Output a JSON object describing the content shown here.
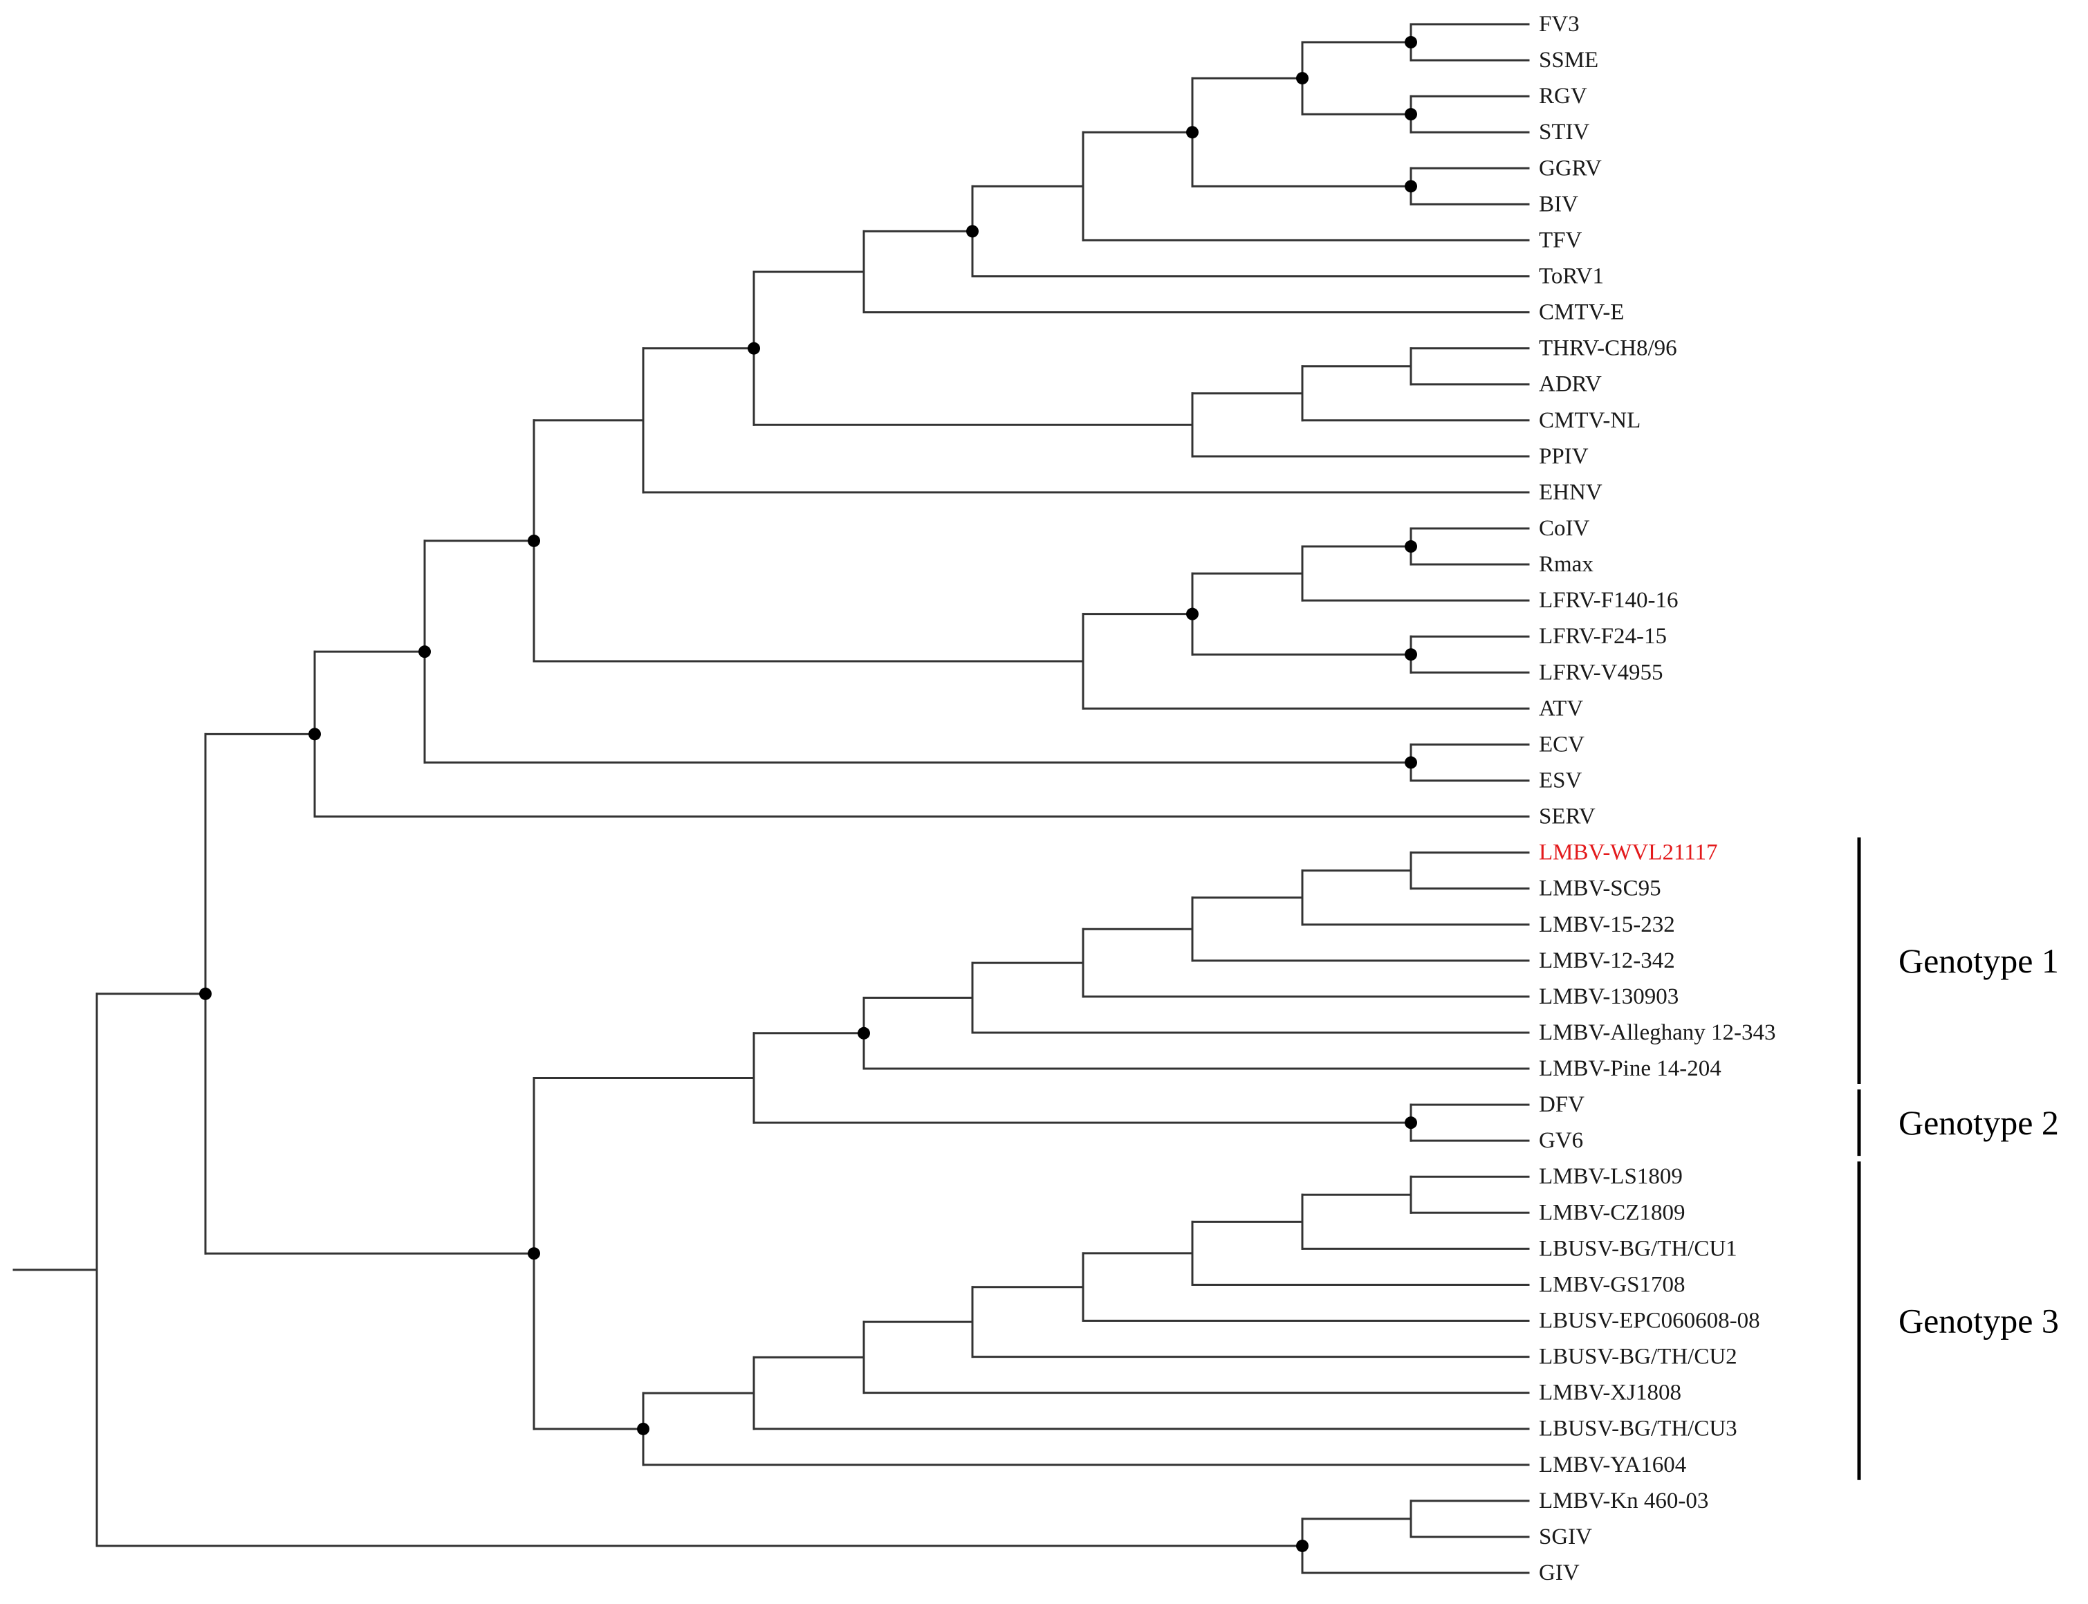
{
  "figure": {
    "type": "phylogenetic-tree",
    "highlight_color": "#e31a1c",
    "line_color": "#333333",
    "node_marker_color": "#000000"
  },
  "leaves": [
    {
      "id": "FV3",
      "label": "FV3"
    },
    {
      "id": "SSME",
      "label": "SSME"
    },
    {
      "id": "RGV",
      "label": "RGV"
    },
    {
      "id": "STIV",
      "label": "STIV"
    },
    {
      "id": "GGRV",
      "label": "GGRV"
    },
    {
      "id": "BIV",
      "label": "BIV"
    },
    {
      "id": "TFV",
      "label": "TFV"
    },
    {
      "id": "ToRV1",
      "label": "ToRV1"
    },
    {
      "id": "CMTV-E",
      "label": "CMTV-E"
    },
    {
      "id": "THRV-CH8/96",
      "label": "THRV-CH8/96"
    },
    {
      "id": "ADRV",
      "label": "ADRV"
    },
    {
      "id": "CMTV-NL",
      "label": "CMTV-NL"
    },
    {
      "id": "PPIV",
      "label": "PPIV"
    },
    {
      "id": "EHNV",
      "label": "EHNV"
    },
    {
      "id": "CoIV",
      "label": "CoIV"
    },
    {
      "id": "Rmax",
      "label": "Rmax"
    },
    {
      "id": "LFRV-F140-16",
      "label": "LFRV-F140-16"
    },
    {
      "id": "LFRV-F24-15",
      "label": "LFRV-F24-15"
    },
    {
      "id": "LFRV-V4955",
      "label": "LFRV-V4955"
    },
    {
      "id": "ATV",
      "label": "ATV"
    },
    {
      "id": "ECV",
      "label": "ECV"
    },
    {
      "id": "ESV",
      "label": "ESV"
    },
    {
      "id": "SERV",
      "label": "SERV"
    },
    {
      "id": "LMBV-WVL21117",
      "label": "LMBV-WVL21117",
      "highlight": true
    },
    {
      "id": "LMBV-SC95",
      "label": "LMBV-SC95"
    },
    {
      "id": "LMBV-15-232",
      "label": "LMBV-15-232"
    },
    {
      "id": "LMBV-12-342",
      "label": "LMBV-12-342"
    },
    {
      "id": "LMBV-130903",
      "label": "LMBV-130903"
    },
    {
      "id": "LMBV-Alleghany 12-343",
      "label": "LMBV-Alleghany 12-343"
    },
    {
      "id": "LMBV-Pine 14-204",
      "label": "LMBV-Pine 14-204"
    },
    {
      "id": "DFV",
      "label": "DFV"
    },
    {
      "id": "GV6",
      "label": "GV6"
    },
    {
      "id": "LMBV-LS1809",
      "label": "LMBV-LS1809"
    },
    {
      "id": "LMBV-CZ1809",
      "label": "LMBV-CZ1809"
    },
    {
      "id": "LBUSV-BG/TH/CU1",
      "label": "LBUSV-BG/TH/CU1"
    },
    {
      "id": "LMBV-GS1708",
      "label": "LMBV-GS1708"
    },
    {
      "id": "LBUSV-EPC060608-08",
      "label": "LBUSV-EPC060608-08"
    },
    {
      "id": "LBUSV-BG/TH/CU2",
      "label": "LBUSV-BG/TH/CU2"
    },
    {
      "id": "LMBV-XJ1808",
      "label": "LMBV-XJ1808"
    },
    {
      "id": "LBUSV-BG/TH/CU3",
      "label": "LBUSV-BG/TH/CU3"
    },
    {
      "id": "LMBV-YA1604",
      "label": "LMBV-YA1604"
    },
    {
      "id": "LMBV-Kn 460-03",
      "label": "LMBV-Kn 460-03"
    },
    {
      "id": "SGIV",
      "label": "SGIV"
    },
    {
      "id": "GIV",
      "label": "GIV"
    }
  ],
  "groups": [
    {
      "label": "Genotype 1",
      "from": "LMBV-WVL21117",
      "to": "LMBV-Pine 14-204"
    },
    {
      "label": "Genotype 2",
      "from": "DFV",
      "to": "GV6"
    },
    {
      "label": "Genotype 3",
      "from": "LMBV-LS1809",
      "to": "LMBV-YA1604"
    }
  ],
  "tree": {
    "id": "root",
    "marked": false,
    "children": [
      {
        "id": "n-main",
        "marked": true,
        "children": [
          {
            "id": "n-upper",
            "marked": true,
            "children": [
              {
                "id": "n-upper2",
                "marked": true,
                "children": [
                  {
                    "id": "n-upper3",
                    "marked": true,
                    "children": [
                      {
                        "id": "n-ranavirus-a",
                        "marked": false,
                        "children": [
                          {
                            "id": "n-ranavirus-b",
                            "marked": true,
                            "children": [
                              {
                                "id": "n-ranavirus-c",
                                "marked": false,
                                "children": [
                                  {
                                    "id": "n-fv3-group",
                                    "marked": true,
                                    "children": [
                                      {
                                        "id": "n-fv3-tfv",
                                        "marked": false,
                                        "children": [
                                          {
                                            "id": "n-fv3-core",
                                            "marked": true,
                                            "children": [
                                              {
                                                "id": "n-fv3-rgv",
                                                "marked": true,
                                                "children": [
                                                  {
                                                    "id": "n-fv3-pair",
                                                    "marked": true,
                                                    "children": [
                                                      {
                                                        "leaf": "FV3"
                                                      },
                                                      {
                                                        "leaf": "SSME"
                                                      }
                                                    ]
                                                  },
                                                  {
                                                    "id": "n-rgv-pair",
                                                    "marked": true,
                                                    "children": [
                                                      {
                                                        "leaf": "RGV"
                                                      },
                                                      {
                                                        "leaf": "STIV"
                                                      }
                                                    ]
                                                  }
                                                ]
                                              },
                                              {
                                                "id": "n-ggrv-pair",
                                                "marked": true,
                                                "children": [
                                                  {
                                                    "leaf": "GGRV"
                                                  },
                                                  {
                                                    "leaf": "BIV"
                                                  }
                                                ]
                                              }
                                            ]
                                          },
                                          {
                                            "leaf": "TFV"
                                          }
                                        ]
                                      },
                                      {
                                        "leaf": "ToRV1"
                                      }
                                    ]
                                  },
                                  {
                                    "leaf": "CMTV-E"
                                  }
                                ]
                              },
                              {
                                "id": "n-cmtv",
                                "marked": false,
                                "children": [
                                  {
                                    "id": "n-thrv-group",
                                    "marked": false,
                                    "children": [
                                      {
                                        "id": "n-thrv-pair",
                                        "marked": false,
                                        "children": [
                                          {
                                            "leaf": "THRV-CH8/96"
                                          },
                                          {
                                            "leaf": "ADRV"
                                          }
                                        ]
                                      },
                                      {
                                        "leaf": "CMTV-NL"
                                      }
                                    ]
                                  },
                                  {
                                    "leaf": "PPIV"
                                  }
                                ]
                              }
                            ]
                          },
                          {
                            "leaf": "EHNV"
                          }
                        ]
                      },
                      {
                        "id": "n-atv",
                        "marked": false,
                        "children": [
                          {
                            "id": "n-lfrv",
                            "marked": true,
                            "children": [
                              {
                                "id": "n-coiv-group",
                                "marked": false,
                                "children": [
                                  {
                                    "id": "n-coiv-pair",
                                    "marked": true,
                                    "children": [
                                      {
                                        "leaf": "CoIV"
                                      },
                                      {
                                        "leaf": "Rmax"
                                      }
                                    ]
                                  },
                                  {
                                    "leaf": "LFRV-F140-16"
                                  }
                                ]
                              },
                              {
                                "id": "n-lfrv-pair",
                                "marked": true,
                                "children": [
                                  {
                                    "leaf": "LFRV-F24-15"
                                  },
                                  {
                                    "leaf": "LFRV-V4955"
                                  }
                                ]
                              }
                            ]
                          },
                          {
                            "leaf": "ATV"
                          }
                        ]
                      }
                    ]
                  },
                  {
                    "id": "n-ecv-pair",
                    "marked": true,
                    "children": [
                      {
                        "leaf": "ECV"
                      },
                      {
                        "leaf": "ESV"
                      }
                    ]
                  }
                ]
              },
              {
                "leaf": "SERV"
              }
            ]
          },
          {
            "id": "n-lmbv",
            "marked": true,
            "children": [
              {
                "id": "n-g12",
                "marked": false,
                "children": [
                  {
                    "id": "n-g1",
                    "marked": true,
                    "children": [
                      {
                        "id": "n-g1a",
                        "marked": false,
                        "children": [
                          {
                            "id": "n-g1b",
                            "marked": false,
                            "children": [
                              {
                                "id": "n-g1c",
                                "marked": false,
                                "children": [
                                  {
                                    "id": "n-g1d",
                                    "marked": false,
                                    "children": [
                                      {
                                        "id": "n-g1e",
                                        "marked": false,
                                        "children": [
                                          {
                                            "leaf": "LMBV-WVL21117"
                                          },
                                          {
                                            "leaf": "LMBV-SC95"
                                          }
                                        ]
                                      },
                                      {
                                        "leaf": "LMBV-15-232"
                                      }
                                    ]
                                  },
                                  {
                                    "leaf": "LMBV-12-342"
                                  }
                                ]
                              },
                              {
                                "leaf": "LMBV-130903"
                              }
                            ]
                          },
                          {
                            "leaf": "LMBV-Alleghany 12-343"
                          }
                        ]
                      },
                      {
                        "leaf": "LMBV-Pine 14-204"
                      }
                    ]
                  },
                  {
                    "id": "n-g2",
                    "marked": true,
                    "children": [
                      {
                        "leaf": "DFV"
                      },
                      {
                        "leaf": "GV6"
                      }
                    ]
                  }
                ]
              },
              {
                "id": "n-g3",
                "marked": true,
                "children": [
                  {
                    "id": "n-g3a",
                    "marked": false,
                    "children": [
                      {
                        "id": "n-g3b",
                        "marked": false,
                        "children": [
                          {
                            "id": "n-g3c",
                            "marked": false,
                            "children": [
                              {
                                "id": "n-g3d",
                                "marked": false,
                                "children": [
                                  {
                                    "id": "n-g3e",
                                    "marked": false,
                                    "children": [
                                      {
                                        "id": "n-g3f",
                                        "marked": false,
                                        "children": [
                                          {
                                            "id": "n-g3g",
                                            "marked": false,
                                            "children": [
                                              {
                                                "leaf": "LMBV-LS1809"
                                              },
                                              {
                                                "leaf": "LMBV-CZ1809"
                                              }
                                            ]
                                          },
                                          {
                                            "leaf": "LBUSV-BG/TH/CU1"
                                          }
                                        ]
                                      },
                                      {
                                        "leaf": "LMBV-GS1708"
                                      }
                                    ]
                                  },
                                  {
                                    "leaf": "LBUSV-EPC060608-08"
                                  }
                                ]
                              },
                              {
                                "leaf": "LBUSV-BG/TH/CU2"
                              }
                            ]
                          },
                          {
                            "leaf": "LMBV-XJ1808"
                          }
                        ]
                      },
                      {
                        "leaf": "LBUSV-BG/TH/CU3"
                      }
                    ]
                  },
                  {
                    "leaf": "LMBV-YA1604"
                  }
                ]
              }
            ]
          }
        ]
      },
      {
        "id": "n-outgroup",
        "marked": true,
        "children": [
          {
            "id": "n-out-pair",
            "marked": false,
            "children": [
              {
                "leaf": "LMBV-Kn 460-03"
              },
              {
                "leaf": "SGIV"
              }
            ]
          },
          {
            "leaf": "GIV"
          }
        ]
      }
    ]
  }
}
